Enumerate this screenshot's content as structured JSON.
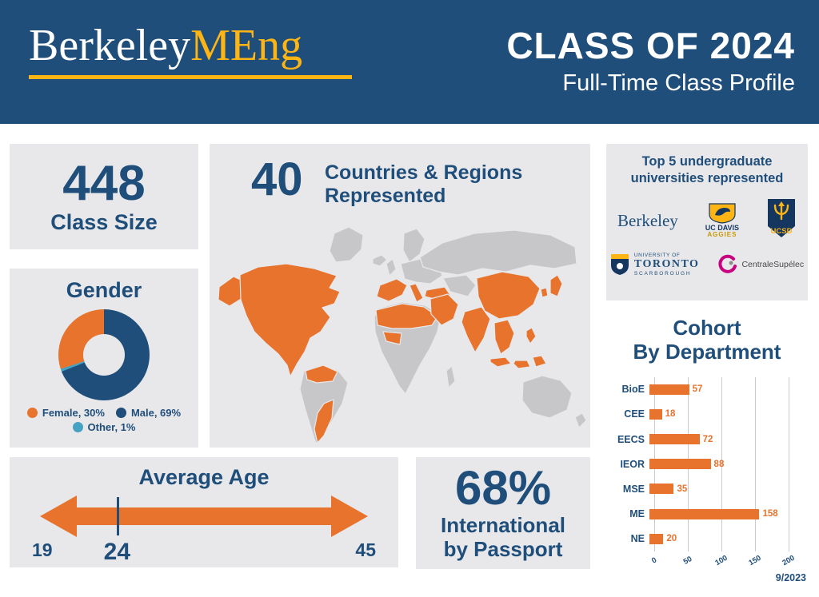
{
  "colors": {
    "navy": "#1F4E7B",
    "orange": "#E7732D",
    "gold": "#FDB515",
    "teal": "#45A2C2",
    "panel_gray": "#E8E8EA",
    "map_gray": "#C7C7C9"
  },
  "header": {
    "logo_part1": "Berkeley",
    "logo_part2": "MEng",
    "title": "CLASS OF 2024",
    "subtitle": "Full-Time Class Profile"
  },
  "class_size": {
    "value": "448",
    "label": "Class Size"
  },
  "gender": {
    "title": "Gender",
    "legend": [
      {
        "label": "Female, 30%"
      },
      {
        "label": "Male, 69%"
      },
      {
        "label": "Other, 1%"
      }
    ]
  },
  "countries": {
    "value": "40",
    "label_line1": "Countries & Regions",
    "label_line2": "Represented"
  },
  "universities": {
    "title_line1": "Top 5 undergraduate",
    "title_line2": "universities represented",
    "berkeley_label": "Berkeley",
    "ucdavis_label": "UC DAVIS",
    "ucdavis_sub": "AGGIES",
    "ucsd_label": "UCSD",
    "toronto_line1": "UNIVERSITY OF",
    "toronto_line2": "TORONTO",
    "toronto_line3": "SCARBOROUGH",
    "centrale_label": "CentraleSupélec"
  },
  "cohort": {
    "title_line1": "Cohort",
    "title_line2": "By Department"
  },
  "average_age": {
    "title": "Average Age",
    "min_label": "19",
    "avg_label": "24",
    "max_label": "45"
  },
  "international": {
    "value": "68%",
    "label_line1": "International",
    "label_line2": "by Passport"
  },
  "footer": {
    "date": "9/2023"
  },
  "chart_data": [
    {
      "type": "pie",
      "title": "Gender",
      "labels": [
        "Female",
        "Male",
        "Other"
      ],
      "values": [
        30,
        69,
        1
      ],
      "colors": [
        "#E7732D",
        "#1F4E7B",
        "#45A2C2"
      ],
      "donut": true
    },
    {
      "type": "bar",
      "title": "Cohort By Department",
      "orientation": "horizontal",
      "categories": [
        "BioE",
        "CEE",
        "EECS",
        "IEOR",
        "MSE",
        "ME",
        "NE"
      ],
      "values": [
        57,
        18,
        72,
        88,
        35,
        158,
        20
      ],
      "xlabel": "",
      "ylabel": "",
      "xlim": [
        0,
        200
      ],
      "xticks": [
        0,
        50,
        100,
        150,
        200
      ]
    }
  ]
}
